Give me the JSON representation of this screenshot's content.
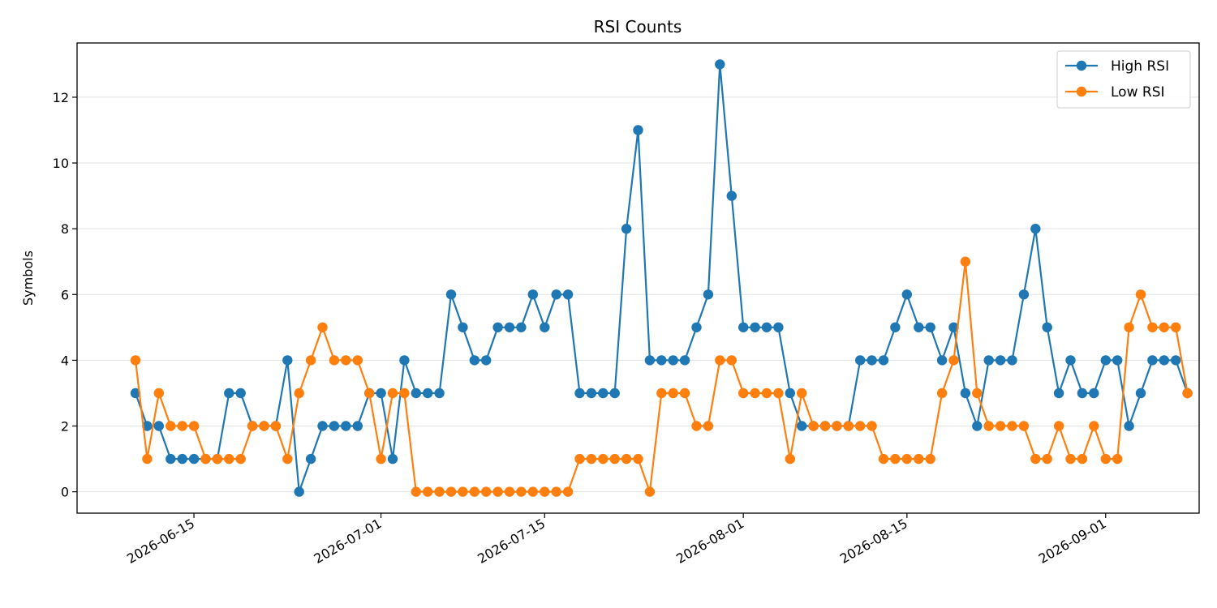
{
  "chart_data": {
    "type": "line",
    "title": "RSI Counts",
    "xlabel": "",
    "ylabel": "Symbols",
    "x_start": "2026-06-10",
    "x_end": "2026-09-06",
    "xlim": [
      "2026-06-05",
      "2026-09-09"
    ],
    "ylim": [
      -0.65,
      13.65
    ],
    "x_ticks": [
      "2026-06-15",
      "2026-07-01",
      "2026-07-15",
      "2026-08-01",
      "2026-08-15",
      "2026-09-01"
    ],
    "y_ticks": [
      0,
      2,
      4,
      6,
      8,
      10,
      12
    ],
    "grid": "y",
    "legend_position": "upper right",
    "series": [
      {
        "name": "High RSI",
        "color": "#1f77b4",
        "values": [
          3,
          2,
          2,
          1,
          1,
          1,
          1,
          1,
          3,
          3,
          2,
          2,
          2,
          4,
          0,
          1,
          2,
          2,
          2,
          2,
          3,
          3,
          1,
          4,
          3,
          3,
          3,
          6,
          5,
          4,
          4,
          5,
          5,
          5,
          6,
          5,
          6,
          6,
          3,
          3,
          3,
          3,
          8,
          11,
          4,
          4,
          4,
          4,
          5,
          6,
          13,
          9,
          5,
          5,
          5,
          5,
          3,
          2,
          2,
          2,
          2,
          2,
          4,
          4,
          4,
          5,
          6,
          5,
          5,
          4,
          5,
          3,
          2,
          4,
          4,
          4,
          6,
          8,
          5,
          3,
          4,
          3,
          3,
          4,
          4,
          2,
          3,
          4,
          4,
          4,
          3
        ]
      },
      {
        "name": "Low RSI",
        "color": "#ff7f0e",
        "values": [
          4,
          1,
          3,
          2,
          2,
          2,
          1,
          1,
          1,
          1,
          2,
          2,
          2,
          1,
          3,
          4,
          5,
          4,
          4,
          4,
          3,
          1,
          3,
          3,
          0,
          0,
          0,
          0,
          0,
          0,
          0,
          0,
          0,
          0,
          0,
          0,
          0,
          0,
          1,
          1,
          1,
          1,
          1,
          1,
          0,
          3,
          3,
          3,
          2,
          2,
          4,
          4,
          3,
          3,
          3,
          3,
          1,
          3,
          2,
          2,
          2,
          2,
          2,
          2,
          1,
          1,
          1,
          1,
          1,
          3,
          4,
          7,
          3,
          2,
          2,
          2,
          2,
          1,
          1,
          2,
          1,
          1,
          2,
          1,
          1,
          5,
          6,
          5,
          5,
          5,
          3
        ]
      }
    ]
  }
}
